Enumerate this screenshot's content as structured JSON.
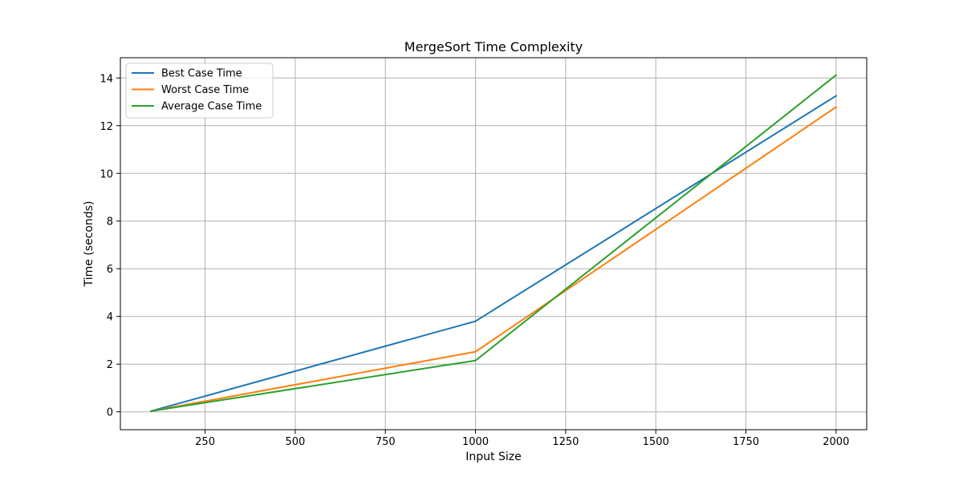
{
  "chart_data": {
    "type": "line",
    "title": "MergeSort Time Complexity",
    "xlabel": "Input Size",
    "ylabel": "Time (seconds)",
    "x": [
      100,
      1000,
      2000
    ],
    "xlim": [
      15,
      2085
    ],
    "ylim": [
      -0.75,
      14.85
    ],
    "xticks": [
      250,
      500,
      750,
      1000,
      1250,
      1500,
      1750,
      2000
    ],
    "yticks": [
      0,
      2,
      4,
      6,
      8,
      10,
      12,
      14
    ],
    "grid": true,
    "legend_position": "upper-left",
    "series": [
      {
        "name": "Best Case Time",
        "color": "#1f77b4",
        "values": [
          0.03,
          3.8,
          13.25
        ]
      },
      {
        "name": "Worst Case Time",
        "color": "#ff7f0e",
        "values": [
          0.03,
          2.52,
          12.78
        ]
      },
      {
        "name": "Average Case Time",
        "color": "#2ca02c",
        "values": [
          0.03,
          2.15,
          14.12
        ]
      }
    ]
  }
}
